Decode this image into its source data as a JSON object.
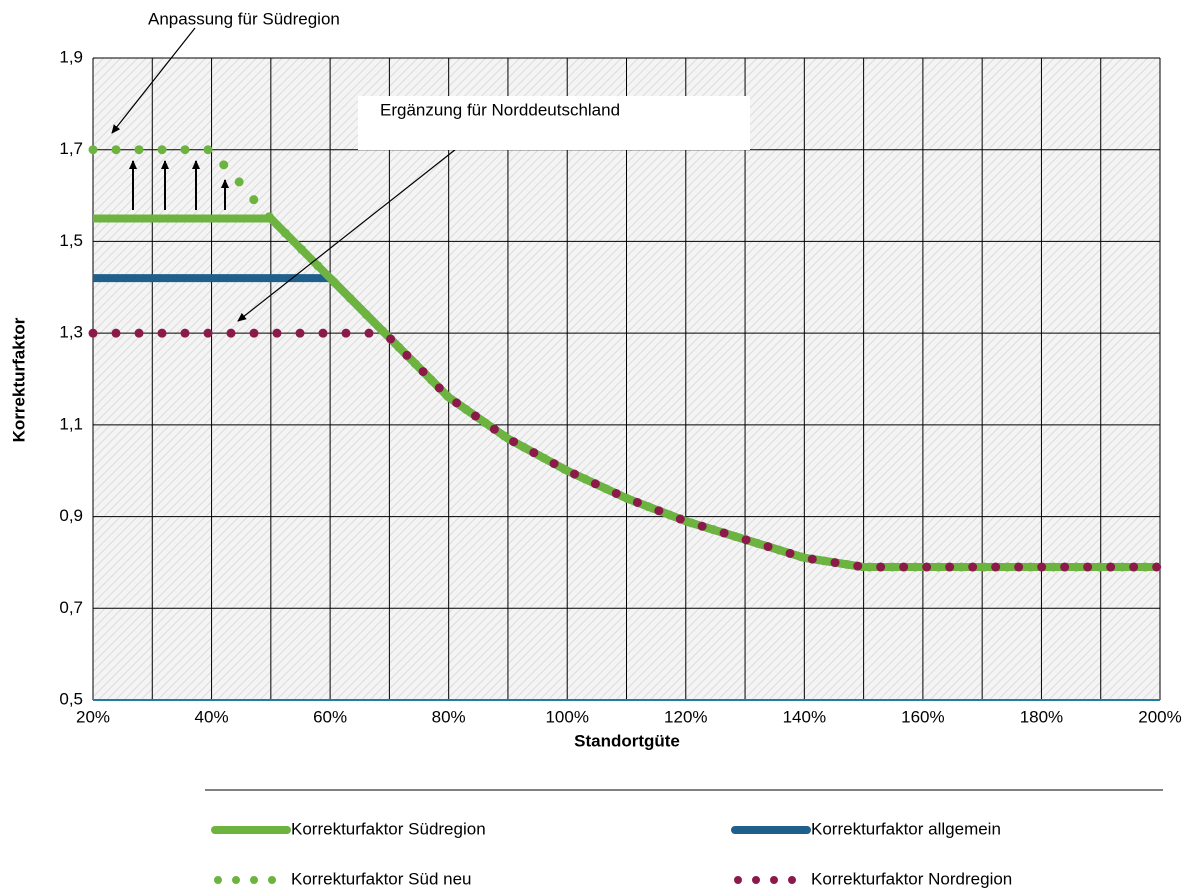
{
  "chart_data": {
    "type": "line",
    "x_label": "Standortgüte",
    "y_label": "Korrekturfaktor",
    "xlim": [
      20,
      200
    ],
    "ylim": [
      0.5,
      1.9
    ],
    "xticks": [
      {
        "value": 20,
        "label": "20%"
      },
      {
        "value": 40,
        "label": "40%"
      },
      {
        "value": 60,
        "label": "60%"
      },
      {
        "value": 80,
        "label": "80%"
      },
      {
        "value": 100,
        "label": "100%"
      },
      {
        "value": 120,
        "label": "120%"
      },
      {
        "value": 140,
        "label": "140%"
      },
      {
        "value": 160,
        "label": "160%"
      },
      {
        "value": 180,
        "label": "180%"
      },
      {
        "value": 200,
        "label": "200%"
      }
    ],
    "xminor_ticks": [
      30,
      50,
      70,
      90,
      110,
      130,
      150,
      170,
      190
    ],
    "yticks": [
      {
        "value": 0.5,
        "label": "0,5"
      },
      {
        "value": 0.7,
        "label": "0,7"
      },
      {
        "value": 0.9,
        "label": "0,9"
      },
      {
        "value": 1.1,
        "label": "1,1"
      },
      {
        "value": 1.3,
        "label": "1,3"
      },
      {
        "value": 1.5,
        "label": "1,5"
      },
      {
        "value": 1.7,
        "label": "1,7"
      },
      {
        "value": 1.9,
        "label": "1,9"
      }
    ],
    "grid": true,
    "series": [
      {
        "name": "Korrekturfaktor allgemein",
        "color": "#1f5f8b",
        "style": "solid",
        "x": [
          20,
          60,
          70,
          80,
          90,
          100,
          110,
          120,
          130,
          140,
          150,
          200
        ],
        "values": [
          1.42,
          1.42,
          1.29,
          1.16,
          1.07,
          1.0,
          0.94,
          0.89,
          0.85,
          0.81,
          0.79,
          0.79
        ]
      },
      {
        "name": "Korrekturfaktor Südregion",
        "color": "#6db33f",
        "style": "solid",
        "x": [
          20,
          50,
          60,
          70,
          80,
          90,
          100,
          110,
          120,
          130,
          140,
          150,
          200
        ],
        "values": [
          1.55,
          1.55,
          1.42,
          1.29,
          1.16,
          1.07,
          1.0,
          0.94,
          0.89,
          0.85,
          0.81,
          0.79,
          0.79
        ]
      },
      {
        "name": "Korrekturfaktor Süd neu",
        "color": "#6db33f",
        "style": "dotted",
        "x": [
          20,
          40,
          42.5,
          45,
          47.5,
          50,
          60,
          70,
          80,
          90,
          100,
          110,
          120,
          130,
          140,
          150,
          200
        ],
        "values": [
          1.7,
          1.7,
          1.66,
          1.625,
          1.585,
          1.55,
          1.42,
          1.29,
          1.16,
          1.07,
          1.0,
          0.94,
          0.89,
          0.85,
          0.81,
          0.79,
          0.79
        ]
      },
      {
        "name": "Korrekturfaktor Nordregion",
        "color": "#8b1a4a",
        "style": "dotted",
        "x": [
          20,
          68,
          70,
          80,
          90,
          100,
          110,
          120,
          130,
          140,
          150,
          200
        ],
        "values": [
          1.3,
          1.3,
          1.29,
          1.16,
          1.07,
          1.0,
          0.94,
          0.89,
          0.85,
          0.81,
          0.79,
          0.79
        ]
      }
    ],
    "annotations": [
      {
        "text": "Anpassung  für Südregion"
      },
      {
        "text": "Ergänzung  für Norddeutschland"
      }
    ]
  }
}
